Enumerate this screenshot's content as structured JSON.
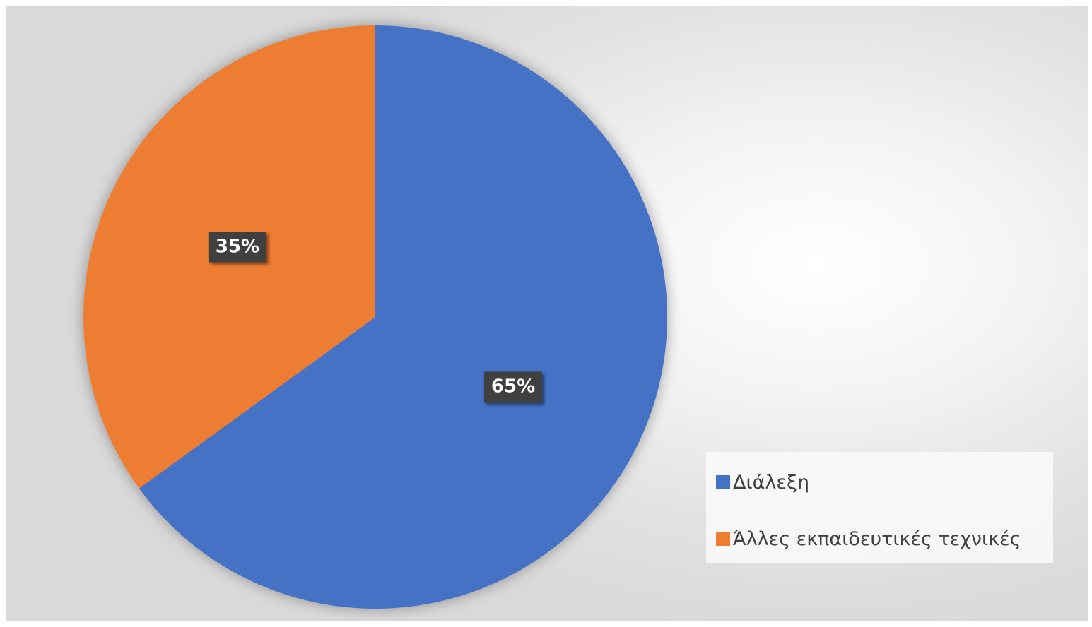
{
  "chart_data": {
    "type": "pie",
    "title": "",
    "slices": [
      {
        "label": "Διάλεξη",
        "value": 65,
        "display": "65%",
        "color": "#4472C4"
      },
      {
        "label": "Άλλες εκπαιδευτικές τεχνικές",
        "value": 35,
        "display": "35%",
        "color": "#ED7D31"
      }
    ],
    "start_angle_deg": 0,
    "direction": "clockwise",
    "legend_position": "bottom-right"
  }
}
